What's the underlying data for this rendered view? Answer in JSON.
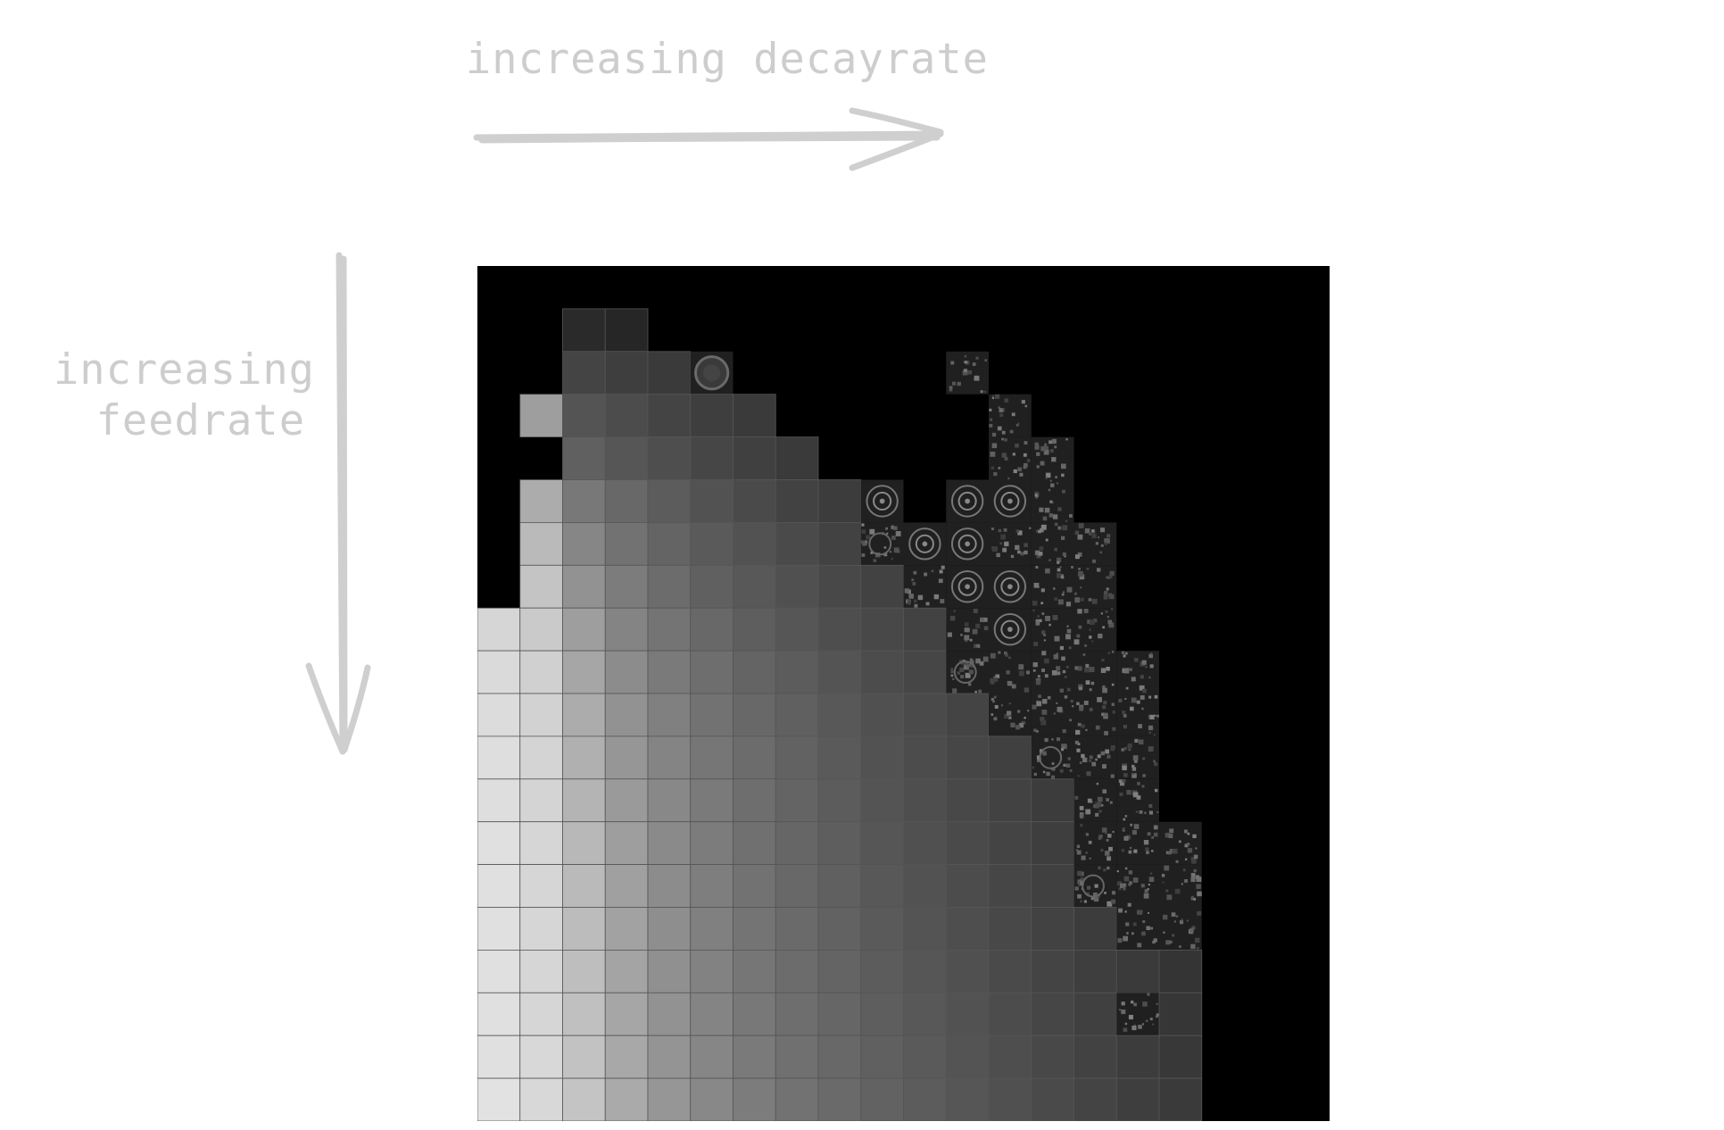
{
  "axes": {
    "x_label": "increasing decayrate",
    "y_label_lines": [
      "increasing",
      "feedrate"
    ]
  },
  "colors": {
    "label": "#cdcdcd",
    "arrow": "#cfcfcf",
    "panel_background": "#000000",
    "cell_border": "#555555"
  },
  "grid": {
    "columns": 20,
    "rows": 20,
    "cells": [
      [
        0,
        0,
        0,
        0,
        0,
        0,
        0,
        0,
        0,
        0,
        0,
        0,
        0,
        0,
        0,
        0,
        0,
        0,
        0,
        0
      ],
      [
        0,
        0,
        42,
        38,
        0,
        0,
        0,
        0,
        0,
        0,
        0,
        0,
        0,
        0,
        0,
        0,
        0,
        0,
        0,
        0
      ],
      [
        0,
        0,
        68,
        62,
        58,
        "spot",
        0,
        0,
        0,
        0,
        0,
        "noise",
        0,
        0,
        0,
        0,
        0,
        0,
        0,
        0
      ],
      [
        0,
        158,
        84,
        76,
        68,
        62,
        58,
        0,
        0,
        0,
        0,
        0,
        "noise",
        0,
        0,
        0,
        0,
        0,
        0,
        0
      ],
      [
        0,
        0,
        96,
        86,
        78,
        70,
        64,
        58,
        0,
        0,
        0,
        0,
        "noise",
        "noise",
        0,
        0,
        0,
        0,
        0,
        0
      ],
      [
        0,
        172,
        120,
        104,
        92,
        82,
        74,
        66,
        60,
        "spots",
        0,
        "spots",
        "spots",
        "noise",
        0,
        0,
        0,
        0,
        0,
        0
      ],
      [
        0,
        186,
        134,
        114,
        100,
        90,
        82,
        74,
        66,
        "mixed",
        "spots",
        "spots",
        "noise",
        "noise",
        "noise",
        0,
        0,
        0,
        0,
        0
      ],
      [
        0,
        196,
        146,
        124,
        108,
        96,
        88,
        80,
        72,
        66,
        "noise",
        "spots",
        "spots",
        "noise",
        "noise",
        0,
        0,
        0,
        0,
        0
      ],
      [
        214,
        202,
        158,
        132,
        116,
        104,
        94,
        86,
        78,
        72,
        66,
        "noise",
        "spots",
        "noise",
        "noise",
        0,
        0,
        0,
        0,
        0
      ],
      [
        218,
        208,
        166,
        140,
        122,
        110,
        100,
        92,
        84,
        76,
        70,
        "mixed",
        "noise",
        "noise",
        "noise",
        "noise",
        0,
        0,
        0,
        0
      ],
      [
        220,
        210,
        172,
        146,
        128,
        114,
        104,
        96,
        88,
        80,
        74,
        68,
        "noise",
        "noise",
        "noise",
        "noise",
        0,
        0,
        0,
        0
      ],
      [
        222,
        212,
        176,
        150,
        132,
        118,
        108,
        98,
        90,
        82,
        76,
        70,
        64,
        "mixed",
        "noise",
        "noise",
        0,
        0,
        0,
        0
      ],
      [
        222,
        212,
        180,
        154,
        136,
        122,
        110,
        100,
        92,
        84,
        78,
        72,
        66,
        60,
        "noise",
        "noise",
        0,
        0,
        0,
        0
      ],
      [
        224,
        214,
        184,
        158,
        138,
        124,
        112,
        102,
        94,
        86,
        80,
        74,
        68,
        62,
        "noise",
        "noise",
        "noise",
        0,
        0,
        0
      ],
      [
        224,
        214,
        186,
        160,
        140,
        126,
        114,
        104,
        96,
        88,
        82,
        76,
        70,
        64,
        "mixed",
        "noise",
        "noise",
        0,
        0,
        0
      ],
      [
        224,
        214,
        188,
        162,
        142,
        128,
        116,
        106,
        98,
        90,
        84,
        78,
        72,
        66,
        60,
        "noise",
        "noise",
        0,
        0,
        0
      ],
      [
        224,
        214,
        190,
        164,
        144,
        130,
        118,
        108,
        100,
        92,
        86,
        80,
        74,
        68,
        62,
        58,
        52,
        0,
        0,
        0
      ],
      [
        224,
        214,
        192,
        166,
        146,
        132,
        120,
        110,
        102,
        94,
        88,
        82,
        76,
        70,
        64,
        "noise",
        54,
        0,
        0,
        0
      ],
      [
        224,
        216,
        194,
        168,
        148,
        134,
        122,
        112,
        104,
        96,
        90,
        84,
        78,
        72,
        66,
        60,
        56,
        0,
        0,
        0
      ],
      [
        226,
        216,
        196,
        170,
        150,
        136,
        124,
        114,
        106,
        98,
        92,
        86,
        80,
        74,
        68,
        62,
        58,
        0,
        0,
        0
      ]
    ]
  }
}
